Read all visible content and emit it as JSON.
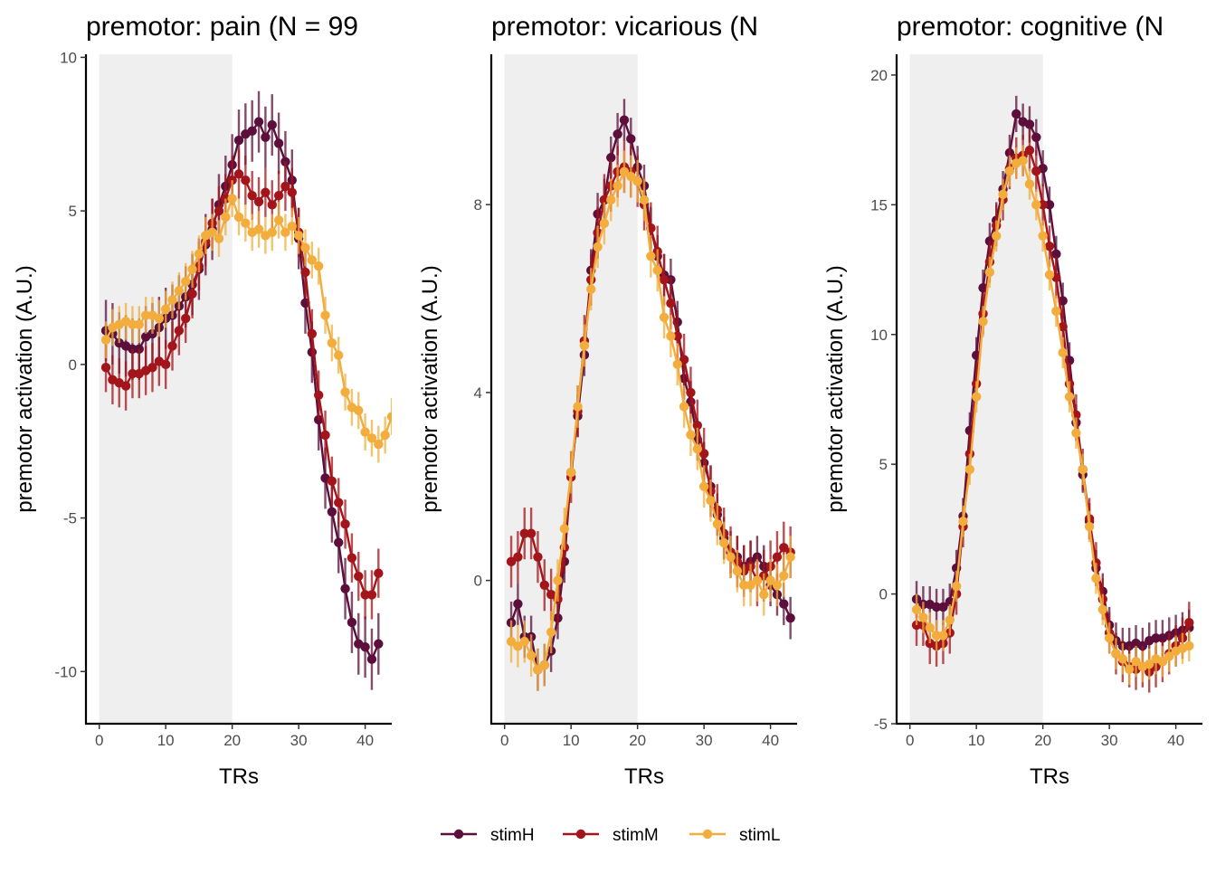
{
  "legend": {
    "position": "bottom",
    "items": [
      {
        "label": "stimH",
        "color": "#5b0f3a"
      },
      {
        "label": "stimM",
        "color": "#a3151b"
      },
      {
        "label": "stimL",
        "color": "#f2ad3c"
      }
    ]
  },
  "chart_data": [
    {
      "type": "line",
      "title": "premotor: pain (N = 99",
      "xlabel": "TRs",
      "ylabel": "premotor activation (A.U.)",
      "xlim": [
        -2,
        44
      ],
      "ylim": [
        -11.7,
        10.1
      ],
      "xticks": [
        0,
        10,
        20,
        30,
        40
      ],
      "yticks": [
        -10,
        -5,
        0,
        5,
        10
      ],
      "ytick_labels": [
        "-10",
        "-5",
        "0",
        "5",
        "10"
      ],
      "shaded_x": [
        0,
        20
      ],
      "x_start": 1,
      "series": [
        {
          "name": "stimH",
          "se": 1.0,
          "values": [
            1.1,
            1.0,
            0.7,
            0.6,
            0.5,
            0.5,
            0.9,
            1.0,
            1.2,
            1.5,
            1.6,
            1.9,
            2.2,
            2.6,
            3.1,
            3.9,
            4.4,
            5.2,
            5.8,
            6.5,
            7.3,
            7.5,
            7.6,
            7.9,
            7.4,
            7.8,
            7.2,
            6.6,
            6.0,
            4.1,
            2.0,
            0.4,
            -1.8,
            -3.7,
            -4.8,
            -5.8,
            -7.3,
            -8.4,
            -9.1,
            -9.2,
            -9.6,
            -9.1
          ]
        },
        {
          "name": "stimM",
          "se": 0.8,
          "values": [
            -0.1,
            -0.5,
            -0.6,
            -0.7,
            -0.3,
            -0.3,
            -0.2,
            -0.1,
            0.1,
            0.0,
            0.6,
            1.1,
            1.5,
            2.3,
            3.2,
            4.0,
            4.6,
            5.0,
            5.4,
            6.0,
            6.2,
            6.0,
            5.5,
            5.3,
            5.6,
            5.2,
            5.5,
            5.8,
            5.6,
            4.3,
            3.0,
            1.0,
            -1.0,
            -2.3,
            -3.8,
            -4.5,
            -5.2,
            -6.3,
            -6.9,
            -7.5,
            -7.5,
            -6.8
          ]
        },
        {
          "name": "stimL",
          "se": 0.6,
          "values": [
            0.8,
            1.2,
            1.3,
            1.4,
            1.3,
            1.3,
            1.6,
            1.6,
            1.5,
            1.8,
            2.1,
            2.4,
            2.7,
            3.1,
            3.6,
            4.2,
            4.3,
            4.1,
            4.8,
            5.4,
            4.8,
            4.6,
            4.3,
            4.4,
            4.2,
            4.3,
            4.7,
            4.3,
            4.5,
            4.2,
            3.8,
            3.4,
            3.2,
            1.6,
            0.7,
            0.3,
            -0.9,
            -1.4,
            -1.5,
            -2.2,
            -2.4,
            -2.6,
            -2.3,
            -1.7
          ]
        }
      ]
    },
    {
      "type": "line",
      "title": "premotor: vicarious (N",
      "xlabel": "TRs",
      "ylabel": "premotor activation (A.U.)",
      "xlim": [
        -2,
        44
      ],
      "ylim": [
        -3.05,
        11.2
      ],
      "xticks": [
        0,
        10,
        20,
        30,
        40
      ],
      "yticks": [
        0,
        4,
        8
      ],
      "ytick_labels": [
        "0",
        "4",
        "8"
      ],
      "shaded_x": [
        0,
        20
      ],
      "x_start": 1,
      "series": [
        {
          "name": "stimH",
          "se": 0.45,
          "values": [
            -0.9,
            -0.5,
            -1.2,
            -1.2,
            -1.9,
            -1.8,
            -1.5,
            -0.8,
            0.4,
            2.3,
            3.5,
            4.8,
            6.6,
            7.8,
            8.1,
            9.0,
            9.5,
            9.8,
            9.4,
            8.8,
            8.4,
            7.5,
            6.9,
            6.5,
            6.4,
            5.5,
            4.3,
            3.8,
            3.0,
            2.5,
            2.0,
            1.4,
            0.9,
            0.6,
            0.5,
            0.3,
            0.4,
            0.5,
            0.3,
            -0.1,
            -0.3,
            -0.5,
            -0.8
          ]
        },
        {
          "name": "stimM",
          "se": 0.55,
          "values": [
            0.4,
            0.5,
            1.0,
            1.0,
            0.5,
            -0.1,
            -0.3,
            -0.4,
            0.7,
            2.2,
            3.6,
            5.1,
            6.4,
            7.4,
            8.1,
            8.4,
            8.7,
            8.8,
            8.7,
            8.5,
            8.0,
            7.5,
            7.0,
            6.4,
            5.9,
            5.2,
            4.7,
            4.0,
            3.3,
            2.7,
            1.9,
            1.5,
            1.0,
            0.6,
            0.4,
            0.2,
            0.3,
            0.0,
            0.1,
            0.3,
            0.5,
            0.7,
            0.6
          ]
        },
        {
          "name": "stimL",
          "se": 0.45,
          "values": [
            -1.3,
            -1.4,
            -1.3,
            -1.6,
            -1.9,
            -1.8,
            -1.1,
            0.0,
            1.1,
            2.3,
            3.7,
            5.0,
            6.2,
            7.1,
            7.6,
            8.1,
            8.4,
            8.7,
            8.6,
            8.5,
            8.1,
            6.9,
            6.6,
            5.6,
            5.2,
            4.6,
            3.7,
            3.1,
            2.8,
            2.0,
            1.7,
            1.2,
            0.8,
            0.5,
            0.2,
            -0.1,
            -0.1,
            0.0,
            -0.3,
            0.0,
            -0.1,
            0.1,
            0.5
          ]
        }
      ]
    },
    {
      "type": "line",
      "title": "premotor: cognitive (N",
      "xlabel": "TRs",
      "ylabel": "premotor activation (A.U.)",
      "xlim": [
        -2,
        44
      ],
      "ylim": [
        -5,
        20.8
      ],
      "xticks": [
        0,
        10,
        20,
        30,
        40
      ],
      "yticks": [
        -5,
        0,
        5,
        10,
        15,
        20
      ],
      "ytick_labels": [
        "-5",
        "0",
        "5",
        "10",
        "15",
        "20"
      ],
      "shaded_x": [
        0,
        20
      ],
      "x_start": 1,
      "series": [
        {
          "name": "stimH",
          "se": 0.7,
          "values": [
            -0.2,
            -0.4,
            -0.4,
            -0.5,
            -0.5,
            -0.3,
            1.0,
            3.0,
            6.3,
            9.2,
            11.8,
            13.6,
            14.4,
            15.6,
            17.0,
            18.5,
            18.2,
            18.1,
            17.6,
            16.4,
            15.0,
            13.1,
            11.3,
            9.0,
            6.6,
            4.6,
            2.8,
            1.0,
            0.1,
            -1.2,
            -1.8,
            -2.0,
            -2.0,
            -1.9,
            -2.0,
            -1.8,
            -1.7,
            -1.7,
            -1.6,
            -1.5,
            -1.4,
            -1.3
          ]
        },
        {
          "name": "stimM",
          "se": 0.8,
          "values": [
            -1.2,
            -1.2,
            -1.9,
            -2.0,
            -1.9,
            -1.5,
            0.0,
            2.6,
            5.4,
            8.1,
            10.8,
            12.8,
            14.2,
            15.2,
            16.4,
            16.8,
            16.9,
            17.1,
            16.3,
            15.0,
            13.4,
            12.2,
            10.3,
            8.1,
            6.9,
            4.8,
            2.9,
            1.2,
            -0.2,
            -1.5,
            -2.3,
            -2.6,
            -2.8,
            -2.9,
            -2.8,
            -3.0,
            -2.8,
            -2.6,
            -2.3,
            -2.0,
            -1.7,
            -1.1
          ]
        },
        {
          "name": "stimL",
          "se": 0.6,
          "values": [
            -0.6,
            -0.9,
            -1.3,
            -1.6,
            -1.6,
            -1.0,
            0.3,
            2.8,
            4.8,
            7.6,
            10.5,
            12.4,
            13.8,
            15.4,
            16.3,
            16.6,
            16.7,
            15.8,
            15.0,
            13.8,
            12.3,
            10.9,
            9.3,
            7.6,
            6.2,
            4.8,
            2.6,
            0.6,
            -0.6,
            -1.7,
            -2.3,
            -2.5,
            -2.9,
            -2.6,
            -2.8,
            -2.7,
            -2.5,
            -2.6,
            -2.4,
            -2.2,
            -2.1,
            -2.0
          ]
        }
      ]
    }
  ]
}
